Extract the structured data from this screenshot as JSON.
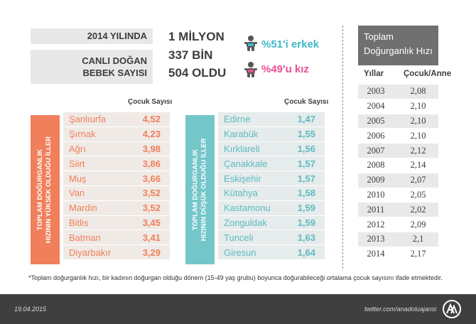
{
  "header": {
    "year_label": "2014 YILINDA",
    "births_label_line1": "CANLI DOĞAN",
    "births_label_line2": "BEBEK SAYISI",
    "number_line1": "1 MİLYON",
    "number_line2": "337 BİN",
    "number_line3": "504 OLDU",
    "male_text": "%51'i erkek",
    "female_text": "%49'u kız",
    "male_color": "#3fb8c8",
    "female_color": "#e94e95"
  },
  "high_list": {
    "side_label_line1": "TOPLAM DOĞURGANLIK",
    "side_label_line2": "HIZININ YÜKSEK OLDUĞU İLLER",
    "column_header": "Çocuk Sayısı",
    "accent_color": "#f07f5b",
    "rows": [
      {
        "name": "Şanlıurfa",
        "value": "4,52"
      },
      {
        "name": "Şırnak",
        "value": "4,23"
      },
      {
        "name": "Ağrı",
        "value": "3,98"
      },
      {
        "name": "Siirt",
        "value": "3,86"
      },
      {
        "name": "Muş",
        "value": "3,66"
      },
      {
        "name": "Van",
        "value": "3,52"
      },
      {
        "name": "Mardin",
        "value": "3,52"
      },
      {
        "name": "Bitlis",
        "value": "3,45"
      },
      {
        "name": "Batman",
        "value": "3,41"
      },
      {
        "name": "Diyarbakır",
        "value": "3,29"
      }
    ]
  },
  "low_list": {
    "side_label_line1": "TOPLAM DOĞURGANLIK",
    "side_label_line2": "HIZININ DÜŞÜK OLDUĞU İLLER",
    "column_header": "Çocuk Sayısı",
    "accent_color": "#74c6c9",
    "rows": [
      {
        "name": "Edirne",
        "value": "1,47"
      },
      {
        "name": "Karabük",
        "value": "1,55"
      },
      {
        "name": "Kırklareli",
        "value": "1,56"
      },
      {
        "name": "Çanakkale",
        "value": "1,57"
      },
      {
        "name": "Eskişehir",
        "value": "1,57"
      },
      {
        "name": "Kütahya",
        "value": "1,58"
      },
      {
        "name": "Kastamonu",
        "value": "1,59"
      },
      {
        "name": "Zonguldak",
        "value": "1,59"
      },
      {
        "name": "Tunceli",
        "value": "1,63"
      },
      {
        "name": "Giresun",
        "value": "1,64"
      }
    ]
  },
  "rate_table": {
    "title_line1": "Toplam",
    "title_line2": "Doğurganlık Hızı",
    "col_year": "Yıllar",
    "col_rate": "Çocuk/Anne",
    "rows": [
      {
        "year": "2003",
        "rate": "2,08"
      },
      {
        "year": "2004",
        "rate": "2,10"
      },
      {
        "year": "2005",
        "rate": "2,10"
      },
      {
        "year": "2006",
        "rate": "2,10"
      },
      {
        "year": "2007",
        "rate": "2,12"
      },
      {
        "year": "2008",
        "rate": "2,14"
      },
      {
        "year": "2009",
        "rate": "2,07"
      },
      {
        "year": "2010",
        "rate": "2,05"
      },
      {
        "year": "2011",
        "rate": "2,02"
      },
      {
        "year": "2012",
        "rate": "2,09"
      },
      {
        "year": "2013",
        "rate": "2,1"
      },
      {
        "year": "2014",
        "rate": "2,17"
      }
    ]
  },
  "footnote": "*Toplam doğurganlık hızı, bir kadının doğurgan olduğu dönem (15-49 yaş grubu) boyunca doğurabileceği ortalama çocuk sayısını ifade etmektedir.",
  "footer": {
    "date": "19.04.2015",
    "twitter": "twitter.com/anadoluajansi",
    "logo_icon": "anadolu-agency-logo"
  }
}
